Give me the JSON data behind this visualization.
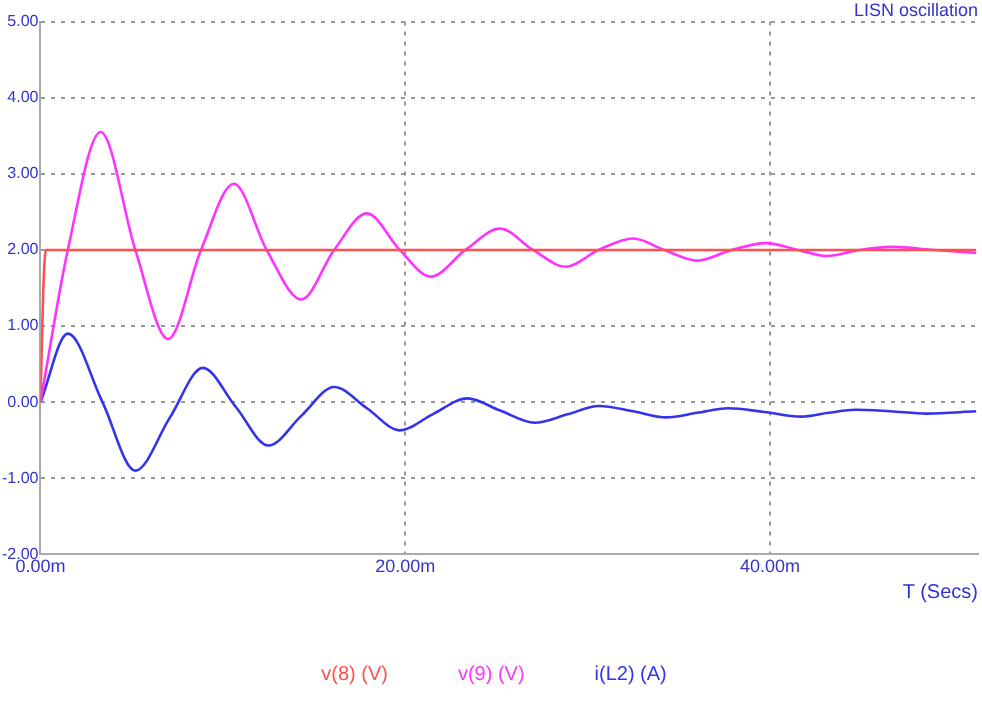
{
  "chart_data": {
    "type": "line",
    "title": "LISN oscillation",
    "xlabel": "T (Secs)",
    "xlim": [
      0,
      51.4
    ],
    "xticks": [
      {
        "value": 0,
        "label": "0.00m"
      },
      {
        "value": 20,
        "label": "20.00m"
      },
      {
        "value": 40,
        "label": "40.00m"
      }
    ],
    "ylim": [
      -2,
      5
    ],
    "yticks": [
      {
        "value": -2,
        "label": "-2.00"
      },
      {
        "value": -1,
        "label": "-1.00"
      },
      {
        "value": 0,
        "label": "0.00"
      },
      {
        "value": 1,
        "label": "1.00"
      },
      {
        "value": 2,
        "label": "2.00"
      },
      {
        "value": 3,
        "label": "3.00"
      },
      {
        "value": 4,
        "label": "4.00"
      },
      {
        "value": 5,
        "label": "5.00"
      }
    ],
    "grid": true,
    "legend": "bottom",
    "marker": "none",
    "line_style": "solid",
    "series": [
      {
        "name": "v(8) (V)",
        "color": "#ff5050",
        "x": [
          0,
          0.15,
          0.3,
          51.3
        ],
        "values": [
          0,
          1.45,
          2.0,
          2.0
        ]
      },
      {
        "name": "v(9) (V)",
        "color": "#ff33ff",
        "x": [
          0,
          1.5,
          3.3,
          5.2,
          7.0,
          8.8,
          10.6,
          12.4,
          14.3,
          16.1,
          17.9,
          19.7,
          21.4,
          23.3,
          25.2,
          27.0,
          28.8,
          30.6,
          32.5,
          34.2,
          36.0,
          37.9,
          39.8,
          41.5,
          43.1,
          44.9,
          46.7,
          49.0,
          51.3
        ],
        "values": [
          0,
          2.0,
          3.55,
          2.0,
          0.83,
          2.0,
          2.87,
          2.0,
          1.35,
          2.0,
          2.48,
          2.0,
          1.65,
          2.0,
          2.28,
          2.0,
          1.78,
          2.0,
          2.15,
          2.0,
          1.86,
          2.0,
          2.09,
          2.0,
          1.92,
          2.0,
          2.04,
          2.0,
          1.96
        ]
      },
      {
        "name": "i(L2) (A)",
        "color": "#3333ee",
        "x": [
          0,
          1.5,
          3.4,
          5.2,
          7.1,
          8.9,
          10.7,
          12.5,
          14.3,
          16.1,
          17.9,
          19.7,
          21.5,
          23.4,
          25.2,
          27.1,
          28.9,
          30.6,
          32.5,
          34.3,
          36.0,
          37.7,
          39.7,
          41.7,
          43.2,
          44.7,
          46.6,
          48.6,
          51.3
        ],
        "values": [
          0,
          0.9,
          0.0,
          -0.9,
          -0.2,
          0.45,
          -0.06,
          -0.57,
          -0.18,
          0.2,
          -0.08,
          -0.37,
          -0.16,
          0.05,
          -0.11,
          -0.27,
          -0.16,
          -0.05,
          -0.12,
          -0.2,
          -0.14,
          -0.08,
          -0.13,
          -0.19,
          -0.14,
          -0.1,
          -0.12,
          -0.15,
          -0.12
        ]
      }
    ]
  }
}
